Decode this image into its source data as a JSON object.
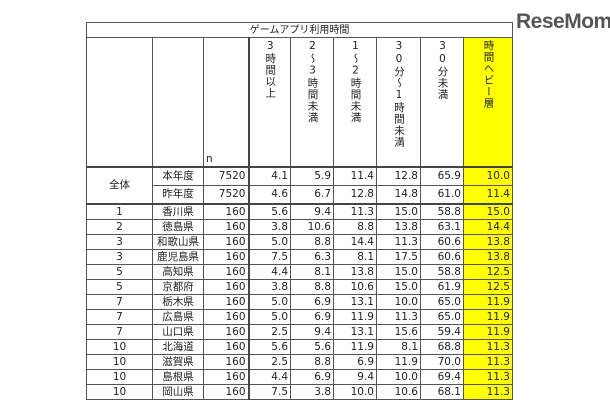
{
  "logo": "ReseMom.",
  "table": {
    "title": "ゲームアプリ利用時間",
    "n_label": "n",
    "columns": [
      "3時間以上",
      "2〜3時間未満",
      "1〜2時間未満",
      "30分〜1時間未満",
      "30分未満",
      "時間ヘビー層"
    ],
    "highlight_color": "#ffff00",
    "overall": {
      "label": "全体",
      "rows": [
        {
          "year": "本年度",
          "n": "7520",
          "values": [
            "4.1",
            "5.9",
            "11.4",
            "12.8",
            "65.9",
            "10.0"
          ]
        },
        {
          "year": "昨年度",
          "n": "7520",
          "values": [
            "4.6",
            "6.7",
            "12.8",
            "14.8",
            "61.0",
            "11.4"
          ]
        }
      ]
    },
    "rows": [
      {
        "rank": "1",
        "pref": "香川県",
        "n": "160",
        "values": [
          "5.6",
          "9.4",
          "11.3",
          "15.0",
          "58.8",
          "15.0"
        ]
      },
      {
        "rank": "2",
        "pref": "徳島県",
        "n": "160",
        "values": [
          "3.8",
          "10.6",
          "8.8",
          "13.8",
          "63.1",
          "14.4"
        ]
      },
      {
        "rank": "3",
        "pref": "和歌山県",
        "n": "160",
        "values": [
          "5.0",
          "8.8",
          "14.4",
          "11.3",
          "60.6",
          "13.8"
        ]
      },
      {
        "rank": "3",
        "pref": "鹿児島県",
        "n": "160",
        "values": [
          "7.5",
          "6.3",
          "8.1",
          "17.5",
          "60.6",
          "13.8"
        ]
      },
      {
        "rank": "5",
        "pref": "高知県",
        "n": "160",
        "values": [
          "4.4",
          "8.1",
          "13.8",
          "15.0",
          "58.8",
          "12.5"
        ]
      },
      {
        "rank": "5",
        "pref": "京都府",
        "n": "160",
        "values": [
          "3.8",
          "8.8",
          "10.6",
          "15.0",
          "61.9",
          "12.5"
        ]
      },
      {
        "rank": "7",
        "pref": "栃木県",
        "n": "160",
        "values": [
          "5.0",
          "6.9",
          "13.1",
          "10.0",
          "65.0",
          "11.9"
        ]
      },
      {
        "rank": "7",
        "pref": "広島県",
        "n": "160",
        "values": [
          "5.0",
          "6.9",
          "11.9",
          "11.3",
          "65.0",
          "11.9"
        ]
      },
      {
        "rank": "7",
        "pref": "山口県",
        "n": "160",
        "values": [
          "2.5",
          "9.4",
          "13.1",
          "15.6",
          "59.4",
          "11.9"
        ]
      },
      {
        "rank": "10",
        "pref": "北海道",
        "n": "160",
        "values": [
          "5.6",
          "5.6",
          "11.9",
          "8.1",
          "68.8",
          "11.3"
        ]
      },
      {
        "rank": "10",
        "pref": "滋賀県",
        "n": "160",
        "values": [
          "2.5",
          "8.8",
          "6.9",
          "11.9",
          "70.0",
          "11.3"
        ]
      },
      {
        "rank": "10",
        "pref": "島根県",
        "n": "160",
        "values": [
          "4.4",
          "6.9",
          "9.4",
          "10.0",
          "69.4",
          "11.3"
        ]
      },
      {
        "rank": "10",
        "pref": "岡山県",
        "n": "160",
        "values": [
          "7.5",
          "3.8",
          "10.0",
          "10.6",
          "68.1",
          "11.3"
        ]
      }
    ]
  }
}
